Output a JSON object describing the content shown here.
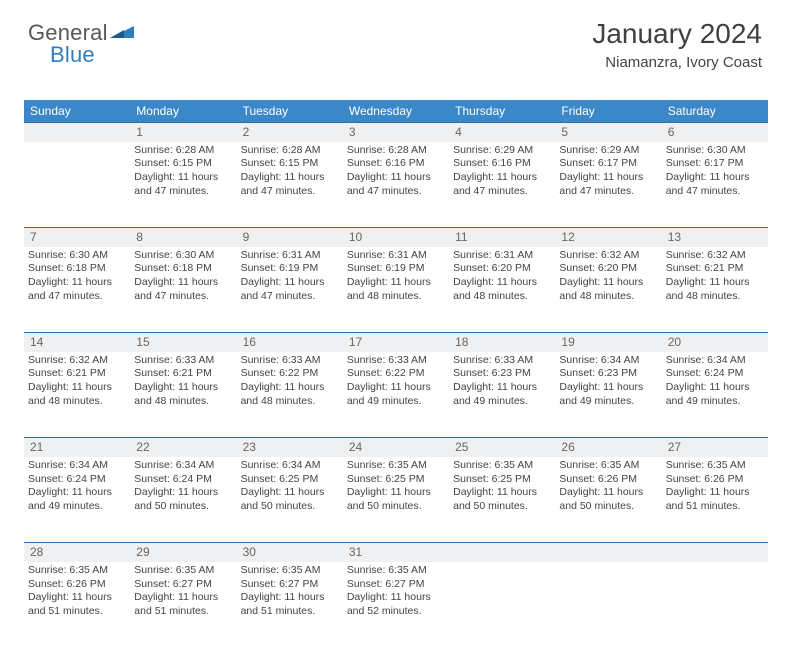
{
  "logo": {
    "general": "General",
    "blue": "Blue"
  },
  "header": {
    "title": "January 2024",
    "subtitle": "Niamanzra, Ivory Coast"
  },
  "colors": {
    "header_bg": "#3c87c7",
    "header_text": "#ffffff",
    "daynum_bg": "#eef0f2",
    "daynum_border": "#2f6fa3",
    "logo_blue": "#2f7fbf",
    "logo_gray": "#585858",
    "body_text": "#444444"
  },
  "weekdays": [
    "Sunday",
    "Monday",
    "Tuesday",
    "Wednesday",
    "Thursday",
    "Friday",
    "Saturday"
  ],
  "weeks": [
    {
      "nums": [
        "",
        "1",
        "2",
        "3",
        "4",
        "5",
        "6"
      ],
      "cells": [
        [
          "",
          "",
          "",
          ""
        ],
        [
          "Sunrise: 6:28 AM",
          "Sunset: 6:15 PM",
          "Daylight: 11 hours",
          "and 47 minutes."
        ],
        [
          "Sunrise: 6:28 AM",
          "Sunset: 6:15 PM",
          "Daylight: 11 hours",
          "and 47 minutes."
        ],
        [
          "Sunrise: 6:28 AM",
          "Sunset: 6:16 PM",
          "Daylight: 11 hours",
          "and 47 minutes."
        ],
        [
          "Sunrise: 6:29 AM",
          "Sunset: 6:16 PM",
          "Daylight: 11 hours",
          "and 47 minutes."
        ],
        [
          "Sunrise: 6:29 AM",
          "Sunset: 6:17 PM",
          "Daylight: 11 hours",
          "and 47 minutes."
        ],
        [
          "Sunrise: 6:30 AM",
          "Sunset: 6:17 PM",
          "Daylight: 11 hours",
          "and 47 minutes."
        ]
      ]
    },
    {
      "nums": [
        "7",
        "8",
        "9",
        "10",
        "11",
        "12",
        "13"
      ],
      "cells": [
        [
          "Sunrise: 6:30 AM",
          "Sunset: 6:18 PM",
          "Daylight: 11 hours",
          "and 47 minutes."
        ],
        [
          "Sunrise: 6:30 AM",
          "Sunset: 6:18 PM",
          "Daylight: 11 hours",
          "and 47 minutes."
        ],
        [
          "Sunrise: 6:31 AM",
          "Sunset: 6:19 PM",
          "Daylight: 11 hours",
          "and 47 minutes."
        ],
        [
          "Sunrise: 6:31 AM",
          "Sunset: 6:19 PM",
          "Daylight: 11 hours",
          "and 48 minutes."
        ],
        [
          "Sunrise: 6:31 AM",
          "Sunset: 6:20 PM",
          "Daylight: 11 hours",
          "and 48 minutes."
        ],
        [
          "Sunrise: 6:32 AM",
          "Sunset: 6:20 PM",
          "Daylight: 11 hours",
          "and 48 minutes."
        ],
        [
          "Sunrise: 6:32 AM",
          "Sunset: 6:21 PM",
          "Daylight: 11 hours",
          "and 48 minutes."
        ]
      ]
    },
    {
      "nums": [
        "14",
        "15",
        "16",
        "17",
        "18",
        "19",
        "20"
      ],
      "cells": [
        [
          "Sunrise: 6:32 AM",
          "Sunset: 6:21 PM",
          "Daylight: 11 hours",
          "and 48 minutes."
        ],
        [
          "Sunrise: 6:33 AM",
          "Sunset: 6:21 PM",
          "Daylight: 11 hours",
          "and 48 minutes."
        ],
        [
          "Sunrise: 6:33 AM",
          "Sunset: 6:22 PM",
          "Daylight: 11 hours",
          "and 48 minutes."
        ],
        [
          "Sunrise: 6:33 AM",
          "Sunset: 6:22 PM",
          "Daylight: 11 hours",
          "and 49 minutes."
        ],
        [
          "Sunrise: 6:33 AM",
          "Sunset: 6:23 PM",
          "Daylight: 11 hours",
          "and 49 minutes."
        ],
        [
          "Sunrise: 6:34 AM",
          "Sunset: 6:23 PM",
          "Daylight: 11 hours",
          "and 49 minutes."
        ],
        [
          "Sunrise: 6:34 AM",
          "Sunset: 6:24 PM",
          "Daylight: 11 hours",
          "and 49 minutes."
        ]
      ]
    },
    {
      "nums": [
        "21",
        "22",
        "23",
        "24",
        "25",
        "26",
        "27"
      ],
      "cells": [
        [
          "Sunrise: 6:34 AM",
          "Sunset: 6:24 PM",
          "Daylight: 11 hours",
          "and 49 minutes."
        ],
        [
          "Sunrise: 6:34 AM",
          "Sunset: 6:24 PM",
          "Daylight: 11 hours",
          "and 50 minutes."
        ],
        [
          "Sunrise: 6:34 AM",
          "Sunset: 6:25 PM",
          "Daylight: 11 hours",
          "and 50 minutes."
        ],
        [
          "Sunrise: 6:35 AM",
          "Sunset: 6:25 PM",
          "Daylight: 11 hours",
          "and 50 minutes."
        ],
        [
          "Sunrise: 6:35 AM",
          "Sunset: 6:25 PM",
          "Daylight: 11 hours",
          "and 50 minutes."
        ],
        [
          "Sunrise: 6:35 AM",
          "Sunset: 6:26 PM",
          "Daylight: 11 hours",
          "and 50 minutes."
        ],
        [
          "Sunrise: 6:35 AM",
          "Sunset: 6:26 PM",
          "Daylight: 11 hours",
          "and 51 minutes."
        ]
      ]
    },
    {
      "nums": [
        "28",
        "29",
        "30",
        "31",
        "",
        "",
        ""
      ],
      "cells": [
        [
          "Sunrise: 6:35 AM",
          "Sunset: 6:26 PM",
          "Daylight: 11 hours",
          "and 51 minutes."
        ],
        [
          "Sunrise: 6:35 AM",
          "Sunset: 6:27 PM",
          "Daylight: 11 hours",
          "and 51 minutes."
        ],
        [
          "Sunrise: 6:35 AM",
          "Sunset: 6:27 PM",
          "Daylight: 11 hours",
          "and 51 minutes."
        ],
        [
          "Sunrise: 6:35 AM",
          "Sunset: 6:27 PM",
          "Daylight: 11 hours",
          "and 52 minutes."
        ],
        [
          "",
          "",
          "",
          ""
        ],
        [
          "",
          "",
          "",
          ""
        ],
        [
          "",
          "",
          "",
          ""
        ]
      ]
    }
  ]
}
